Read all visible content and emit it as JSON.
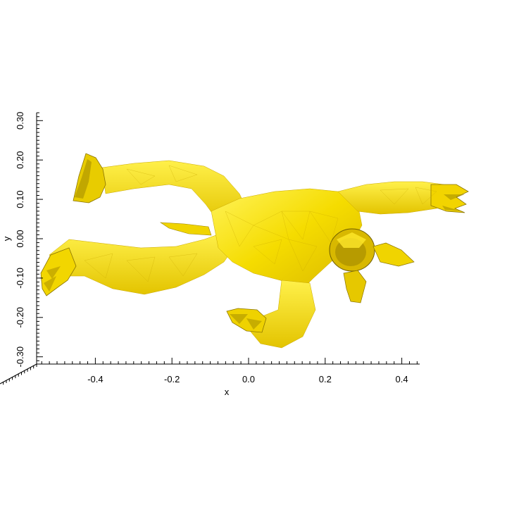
{
  "chart_data": {
    "type": "3d-mesh-surface",
    "view": "top-down (x-y plane)",
    "xlabel": "x",
    "ylabel": "y",
    "xlim": [
      -0.55,
      0.44
    ],
    "ylim": [
      -0.33,
      0.33
    ],
    "x_ticks": [
      -0.4,
      -0.2,
      0.0,
      0.2,
      0.4
    ],
    "x_tick_labels": [
      "-0.4",
      "-0.2",
      "0.0",
      "0.2",
      "0.4"
    ],
    "y_ticks": [
      0.3,
      0.2,
      0.1,
      0.0,
      -0.1,
      -0.2,
      -0.3
    ],
    "y_tick_labels": [
      "0.30",
      "0.20",
      "0.10",
      "0.00",
      "-0.10",
      "-0.20",
      "-0.30"
    ],
    "minor_ticks_per_major": 10,
    "mesh_color": "#ffee00",
    "shade_color": "#8a7400",
    "grid": false,
    "legend": "none"
  }
}
